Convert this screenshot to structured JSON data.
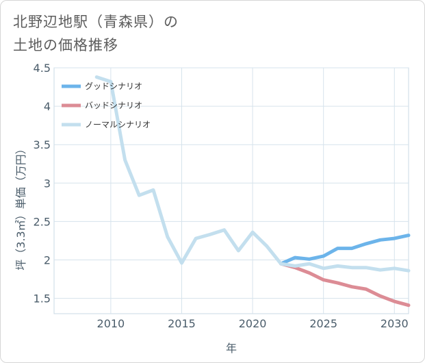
{
  "title": {
    "line1": "北野辺地駅（青森県）の",
    "line2": "土地の価格推移"
  },
  "chart_data": {
    "type": "line",
    "title": "北野辺地駅（青森県）の土地の価格推移",
    "xlabel": "年",
    "ylabel": "坪（3.3㎡）単価（万円）",
    "xlim": [
      2006,
      2031
    ],
    "ylim": [
      1.3,
      4.5
    ],
    "x_ticks": [
      2010,
      2015,
      2020,
      2025,
      2030
    ],
    "y_ticks": [
      1.5,
      2,
      2.5,
      3,
      3.5,
      4,
      4.5
    ],
    "y_tick_labels": [
      "1.5",
      "2",
      "2.5",
      "3",
      "3.5",
      "4",
      "4.5"
    ],
    "grid": true,
    "legend_position": "top-left",
    "series": [
      {
        "name": "グッドシナリオ",
        "color": "#6cb4ea",
        "x": [
          2022,
          2023,
          2024,
          2025,
          2026,
          2027,
          2028,
          2029,
          2030,
          2031
        ],
        "y": [
          1.95,
          2.03,
          2.01,
          2.05,
          2.15,
          2.15,
          2.21,
          2.26,
          2.28,
          2.32
        ]
      },
      {
        "name": "バッドシナリオ",
        "color": "#dc8c95",
        "x": [
          2022,
          2023,
          2024,
          2025,
          2026,
          2027,
          2028,
          2029,
          2030,
          2031
        ],
        "y": [
          1.95,
          1.9,
          1.83,
          1.74,
          1.7,
          1.65,
          1.62,
          1.53,
          1.46,
          1.41
        ]
      },
      {
        "name": "ノーマルシナリオ",
        "color": "#c3dfee",
        "x": [
          2009,
          2010,
          2011,
          2012,
          2013,
          2014,
          2015,
          2016,
          2017,
          2018,
          2019,
          2020,
          2021,
          2022,
          2023,
          2024,
          2025,
          2026,
          2027,
          2028,
          2029,
          2030,
          2031
        ],
        "y": [
          4.38,
          4.32,
          3.3,
          2.84,
          2.91,
          2.3,
          1.96,
          2.28,
          2.33,
          2.39,
          2.12,
          2.36,
          2.18,
          1.95,
          1.92,
          1.95,
          1.89,
          1.92,
          1.9,
          1.9,
          1.87,
          1.89,
          1.86
        ]
      }
    ]
  }
}
